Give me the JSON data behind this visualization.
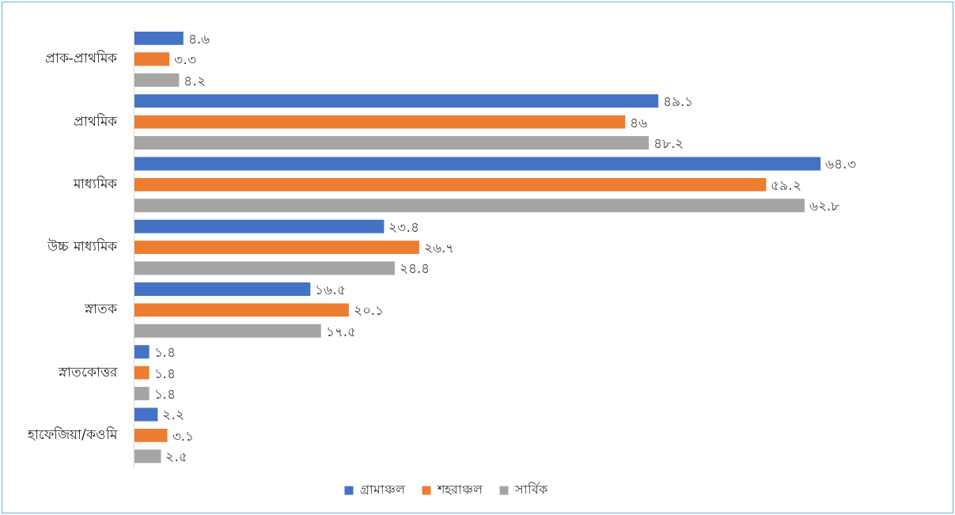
{
  "chart_data": {
    "type": "bar",
    "orientation": "horizontal",
    "categories": [
      "প্রাক-প্রাথমিক",
      "প্রাথমিক",
      "মাধ্যমিক",
      "উচ্চ মাধ্যমিক",
      "স্নাতক",
      "স্নাতকোত্তর",
      "হাফেজিয়া/কওমি"
    ],
    "series": [
      {
        "name": "গ্রামাঞ্চল",
        "color": "#4472c4",
        "values": [
          4.6,
          49.1,
          64.3,
          23.4,
          16.5,
          1.4,
          2.2
        ],
        "value_labels": [
          "৪.৬",
          "৪৯.১",
          "৬৪.৩",
          "২৩.৪",
          "১৬.৫",
          "১.৪",
          "২.২"
        ]
      },
      {
        "name": "শহরাঞ্চল",
        "color": "#ed7d31",
        "values": [
          3.3,
          46,
          59.2,
          26.7,
          20.1,
          1.4,
          3.1
        ],
        "value_labels": [
          "৩.৩",
          "৪৬",
          "৫৯.২",
          "২৬.৭",
          "২০.১",
          "১.৪",
          "৩.১"
        ]
      },
      {
        "name": "সার্বিক",
        "color": "#a5a5a5",
        "values": [
          4.2,
          48.2,
          62.8,
          24.4,
          17.5,
          1.4,
          2.5
        ],
        "value_labels": [
          "৪.২",
          "৪৮.২",
          "৬২.৮",
          "২৪.৪",
          "১৭.৫",
          "১.৪",
          "২.৫"
        ]
      }
    ],
    "tick_labels": "y",
    "grid": false,
    "legend": "bottom"
  }
}
